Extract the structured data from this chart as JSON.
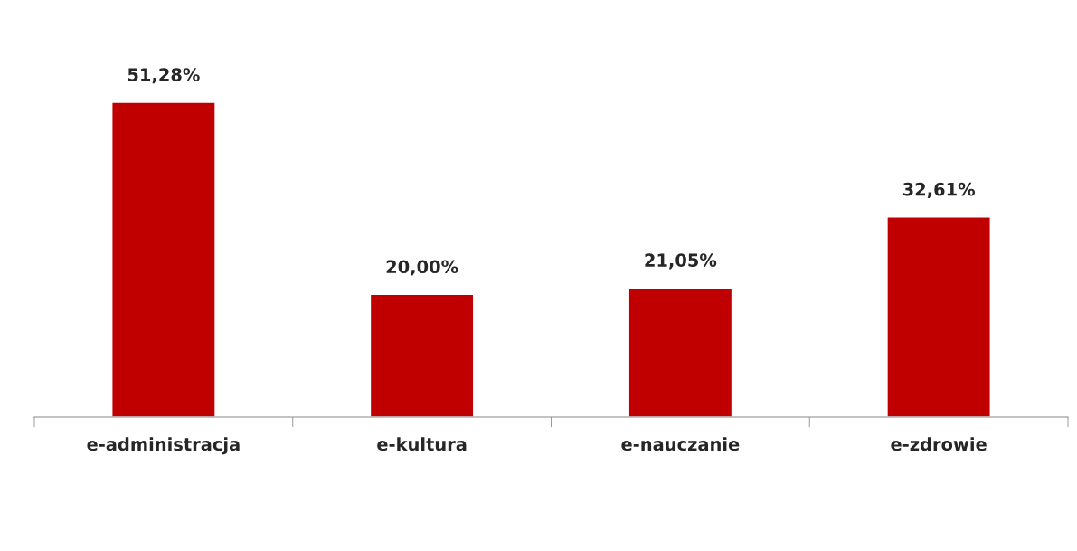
{
  "chart_data": {
    "type": "bar",
    "categories": [
      "e-administracja",
      "e-kultura",
      "e-nauczanie",
      "e-zdrowie"
    ],
    "values": [
      51.28,
      20.0,
      21.05,
      32.61
    ],
    "value_labels": [
      "51,28%",
      "20,00%",
      "21,05%",
      "32,61%"
    ],
    "color": "#c00000",
    "grid": false,
    "legend": false
  }
}
